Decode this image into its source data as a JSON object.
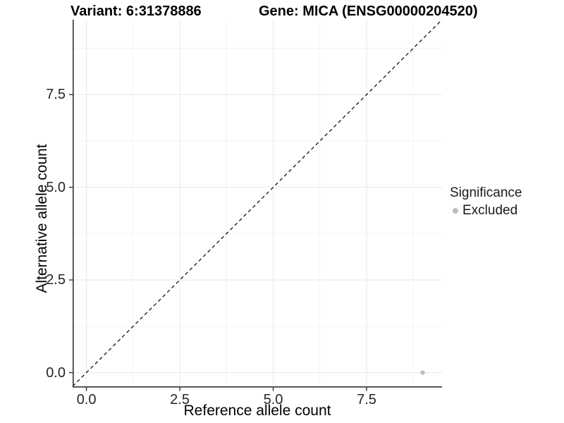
{
  "header": {
    "title_left": "Variant: 6:31378886",
    "title_right": "Gene: MICA (ENSG00000204520)"
  },
  "chart_data": {
    "type": "scatter",
    "title_left": "Variant: 6:31378886",
    "title_right": "Gene: MICA (ENSG00000204520)",
    "xlabel": "Reference allele count",
    "ylabel": "Alternative allele count",
    "xlim": [
      -0.37,
      9.52
    ],
    "ylim": [
      -0.37,
      9.52
    ],
    "x_ticks": {
      "values": [
        0,
        2.5,
        5,
        7.5
      ],
      "labels": [
        "0.0",
        "2.5",
        "5.0",
        "7.5"
      ]
    },
    "y_ticks": {
      "values": [
        0,
        2.5,
        5,
        7.5
      ],
      "labels": [
        "0.0",
        "2.5",
        "5.0",
        "7.5"
      ]
    },
    "minor_breaks": [
      1.25,
      3.75,
      6.25,
      8.75
    ],
    "grid": {
      "show": true,
      "major_color": "#ebebeb",
      "minor_color": "#f4f4f4"
    },
    "axis_color": "#333333",
    "identity_line": {
      "style": "dashed",
      "color": "#000000",
      "x1": -0.37,
      "y1": -0.37,
      "x2": 9.52,
      "y2": 9.52
    },
    "series": [
      {
        "name": "Excluded",
        "color": "#bdbdbd",
        "point_radius": 3.2,
        "points": [
          {
            "x": 9,
            "y": 0
          }
        ]
      }
    ],
    "legend": {
      "title": "Significance",
      "position": "right",
      "items": [
        {
          "label": "Excluded",
          "color": "#bdbdbd"
        }
      ]
    }
  }
}
